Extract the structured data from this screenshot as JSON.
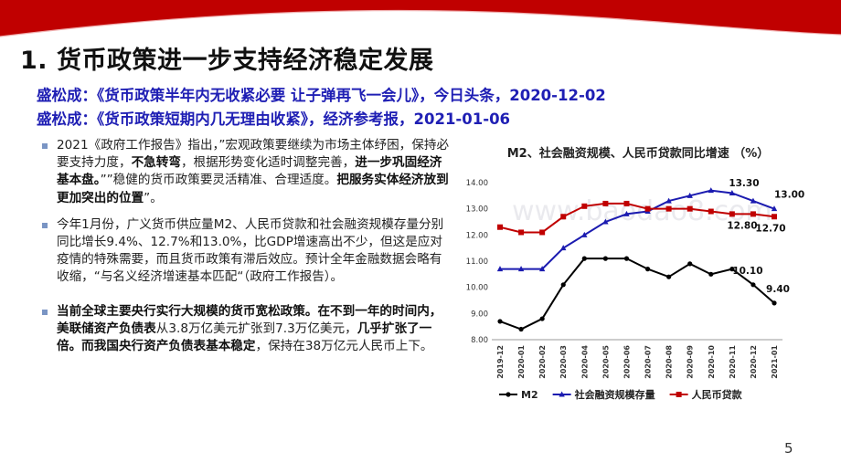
{
  "slide": {
    "title": "1. 货币政策进一步支持经济稳定发展",
    "page_number": "5",
    "watermark": "www.baodao8.com",
    "colors": {
      "accent_red": "#c00000",
      "ref_blue": "#1f1fb4"
    }
  },
  "references": [
    "盛松成：《货币政策半年内无收紧必要 让子弹再飞一会儿》，今日头条，2020-12-02",
    "盛松成：《货币政策短期内几无理由收紧》，经济参考报，2021-01-06"
  ],
  "bullets": {
    "b1": {
      "t1": "2021《政府工作报告》指出，”宏观政策要继续为市场主体纾困，保持必要支持力度，",
      "t2": "不急转弯",
      "t3": "，根据形势变化适时调整完善，",
      "t4": "进一步巩固经济基本盘。",
      "t5": "””稳健的货币政策要灵活精准、合理适度。",
      "t6": "把服务实体经济放到更加突出的位置",
      "t7": "”。"
    },
    "b2": {
      "text": "今年1月份，广义货币供应量M2、人民币贷款和社会融资规模存量分别同比增长9.4%、12.7%和13.0%，比GDP增速高出不少，但这是应对疫情的特殊需要，而且货币政策有滞后效应。预计全年金融数据会略有收缩，“与名义经济增速基本匹配“（政府工作报告）。"
    },
    "b3": {
      "t1": "当前全球主要央行实行大规模的货币宽松政策。在不到一年的时间内，美联储资产负债表",
      "t2": "从3.8万亿美元扩张到7.3万亿美元，",
      "t3": "几乎扩张了一倍。而我国央行资产负债表基本稳定",
      "t4": "，保持在38万亿元人民币上下。"
    }
  },
  "chart_data": {
    "type": "line",
    "title": "M2、社会融资规模、人民币贷款同比增速 （%）",
    "categories": [
      "2019-12",
      "2020-01",
      "2020-02",
      "2020-03",
      "2020-04",
      "2020-05",
      "2020-06",
      "2020-07",
      "2020-08",
      "2020-09",
      "2020-10",
      "2020-11",
      "2020-12",
      "2021-01"
    ],
    "ylim": [
      8,
      14
    ],
    "yticks": [
      "8.00",
      "9.00",
      "10.00",
      "11.00",
      "12.00",
      "13.00",
      "14.00"
    ],
    "series": [
      {
        "name": "M2",
        "color": "#000000",
        "marker": "circle",
        "values": [
          8.7,
          8.4,
          8.8,
          10.1,
          11.1,
          11.1,
          11.1,
          10.7,
          10.4,
          10.9,
          10.5,
          10.7,
          10.1,
          9.4
        ]
      },
      {
        "name": "社会融资规模存量",
        "color": "#1b1bb0",
        "marker": "triangle",
        "values": [
          10.7,
          10.7,
          10.7,
          11.5,
          12.0,
          12.5,
          12.8,
          12.9,
          13.3,
          13.5,
          13.7,
          13.6,
          13.3,
          13.0
        ]
      },
      {
        "name": "人民币贷款",
        "color": "#c00000",
        "marker": "square",
        "values": [
          12.3,
          12.1,
          12.1,
          12.7,
          13.1,
          13.2,
          13.2,
          13.0,
          13.0,
          13.0,
          12.9,
          12.8,
          12.8,
          12.7
        ]
      }
    ],
    "annotations": [
      {
        "series": 1,
        "index": 12,
        "label": "13.30"
      },
      {
        "series": 1,
        "index": 13,
        "label": "13.00"
      },
      {
        "series": 2,
        "index": 12,
        "label": "12.80"
      },
      {
        "series": 2,
        "index": 13,
        "label": "12.70"
      },
      {
        "series": 0,
        "index": 12,
        "label": "10.10"
      },
      {
        "series": 0,
        "index": 13,
        "label": "9.40"
      }
    ],
    "legend_position": "bottom"
  }
}
